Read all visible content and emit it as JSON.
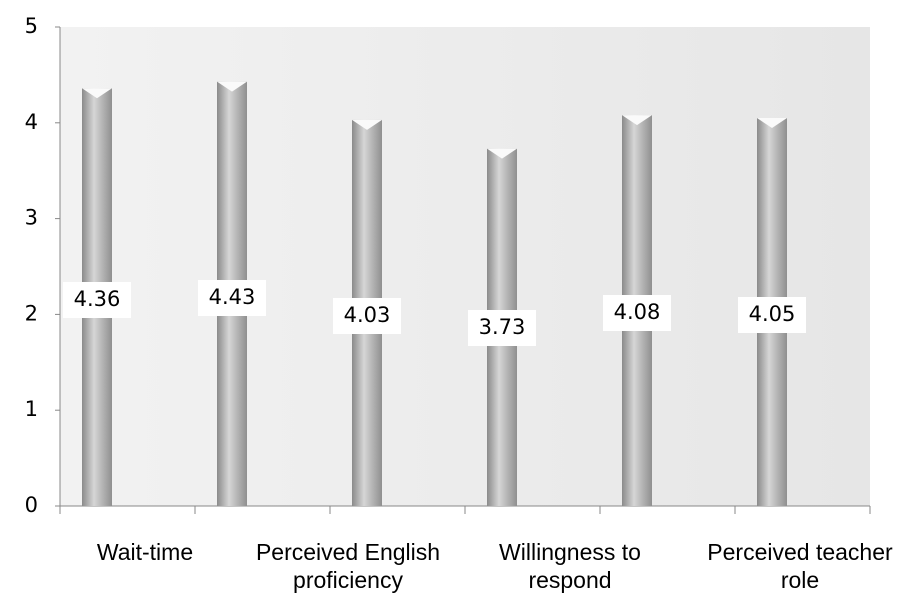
{
  "chart_data": {
    "type": "bar",
    "categories": [
      "Wait-time",
      null,
      "Perceived English proficiency",
      "Willingness to respond",
      null,
      "Perceived teacher role"
    ],
    "values": [
      4.36,
      4.43,
      4.03,
      3.73,
      4.08,
      4.05
    ],
    "color": "#b0b0b0",
    "ylim": [
      0,
      5
    ],
    "yticks": [
      0,
      1,
      2,
      3,
      4,
      5
    ],
    "grid": false
  }
}
